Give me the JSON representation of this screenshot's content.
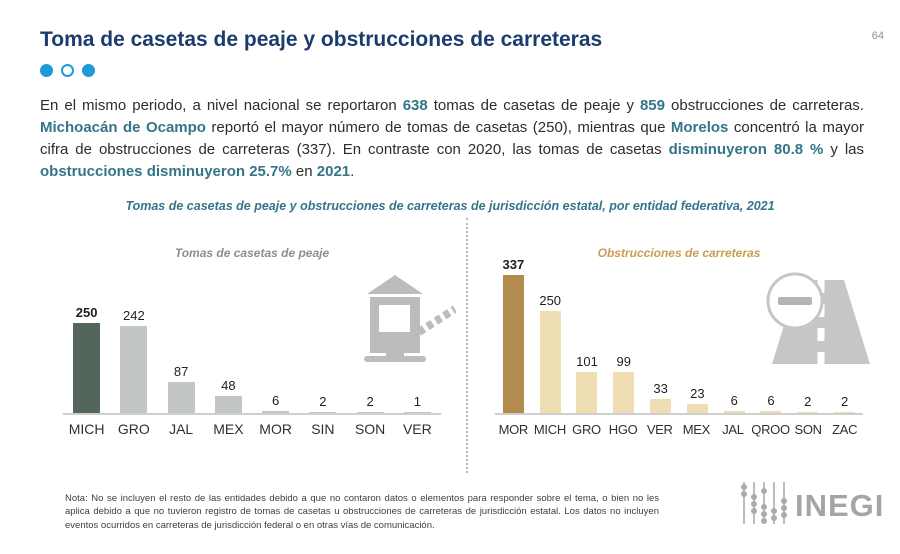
{
  "page": {
    "number": "64"
  },
  "header": {
    "title": "Toma de casetas de peaje y obstrucciones de carreteras",
    "dots": [
      "filled",
      "outline",
      "filled"
    ]
  },
  "intro": {
    "segments": [
      {
        "text": "En el mismo periodo, a nivel nacional se reportaron ",
        "highlight": false
      },
      {
        "text": "638",
        "highlight": true
      },
      {
        "text": " tomas de casetas de peaje y ",
        "highlight": false
      },
      {
        "text": "859",
        "highlight": true
      },
      {
        "text": " obstrucciones de carreteras. ",
        "highlight": false
      },
      {
        "text": "Michoacán de Ocampo",
        "highlight": true
      },
      {
        "text": " reportó el mayor número de tomas de casetas (250), mientras que ",
        "highlight": false
      },
      {
        "text": "Morelos",
        "highlight": true
      },
      {
        "text": " concentró la mayor cifra de obstrucciones de carreteras (337). En contraste con 2020, las tomas de casetas ",
        "highlight": false
      },
      {
        "text": "disminuyeron 80.8 %",
        "highlight": true
      },
      {
        "text": " y las ",
        "highlight": false
      },
      {
        "text": "obstrucciones disminuyeron 25.7%",
        "highlight": true
      },
      {
        "text": " en ",
        "highlight": false
      },
      {
        "text": "2021",
        "highlight": true
      },
      {
        "text": ".",
        "highlight": false
      }
    ]
  },
  "chart_section": {
    "title": "Tomas de casetas de peaje y obstrucciones de carreteras de jurisdicción estatal, por entidad federativa, 2021"
  },
  "chart_data": [
    {
      "type": "bar",
      "title": "Tomas de casetas de peaje",
      "categories": [
        "MICH",
        "GRO",
        "JAL",
        "MEX",
        "MOR",
        "SIN",
        "SON",
        "VER"
      ],
      "values": [
        250,
        242,
        87,
        48,
        6,
        2,
        2,
        1
      ],
      "highlight_index": 0,
      "bar_color": "#c3c7c3",
      "highlight_color": "#54655c",
      "title_color": "#8e8e8e",
      "xlabel": "",
      "ylabel": "",
      "grid": false,
      "legend": "none",
      "data_labels": true
    },
    {
      "type": "bar",
      "title": "Obstrucciones de carreteras",
      "categories": [
        "MOR",
        "MICH",
        "GRO",
        "HGO",
        "VER",
        "MEX",
        "JAL",
        "QROO",
        "SON",
        "ZAC"
      ],
      "values": [
        337,
        250,
        101,
        99,
        33,
        23,
        6,
        6,
        2,
        2
      ],
      "highlight_index": 0,
      "bar_color": "#efddb3",
      "highlight_color": "#b18c4e",
      "title_color": "#c99d52",
      "xlabel": "",
      "ylabel": "",
      "grid": false,
      "legend": "none",
      "data_labels": true
    }
  ],
  "footer": {
    "note": "Nota: No se incluyen el resto de las entidades debido a que no contaron datos o elementos para responder sobre el tema, o bien no les aplica debido a que no tuvieron registro de tomas de casetas u obstrucciones de carreteras de jurisdicción estatal. Los datos no incluyen eventos ocurridos en carreteras de jurisdicción federal o en otras vías de comunicación.",
    "logo_text": "INEGI"
  }
}
